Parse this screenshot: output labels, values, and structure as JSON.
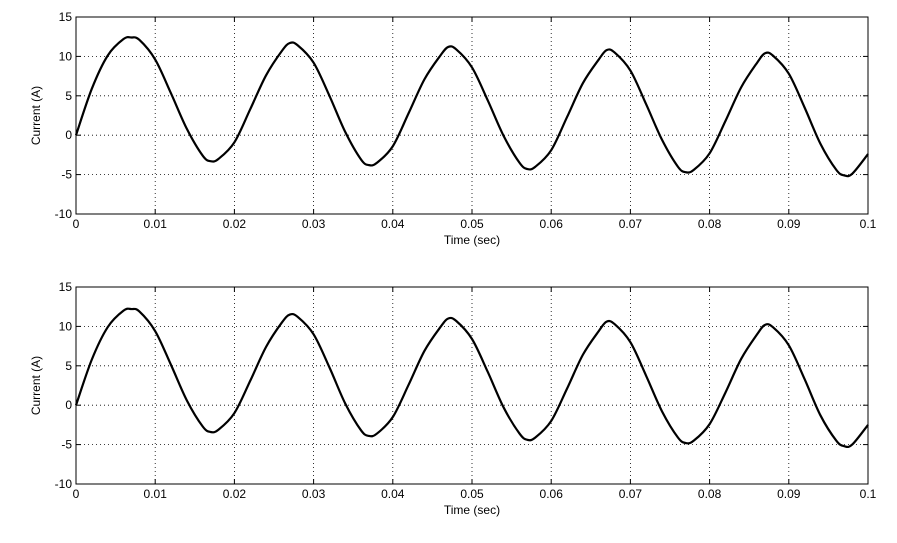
{
  "chart_data": [
    {
      "type": "line",
      "title": "",
      "xlabel": "Time (sec)",
      "ylabel": "Current (A)",
      "xlim": [
        0,
        0.1
      ],
      "ylim": [
        -10,
        15
      ],
      "grid": true,
      "x_ticks": [
        "0",
        "0.01",
        "0.02",
        "0.03",
        "0.04",
        "0.05",
        "0.06",
        "0.07",
        "0.08",
        "0.09",
        "0.1"
      ],
      "y_ticks": [
        "-10",
        "-5",
        "0",
        "5",
        "10",
        "15"
      ],
      "line_color": "#000000",
      "series": [
        {
          "x": [
            0,
            0.002,
            0.004,
            0.006,
            0.007,
            0.008,
            0.01,
            0.012,
            0.014,
            0.016,
            0.017,
            0.018,
            0.02,
            0.022,
            0.024,
            0.026,
            0.027,
            0.028,
            0.03,
            0.032,
            0.034,
            0.036,
            0.037,
            0.038,
            0.04,
            0.042,
            0.044,
            0.046,
            0.047,
            0.048,
            0.05,
            0.052,
            0.054,
            0.056,
            0.057,
            0.058,
            0.06,
            0.062,
            0.064,
            0.066,
            0.067,
            0.068,
            0.07,
            0.072,
            0.074,
            0.076,
            0.077,
            0.078,
            0.08,
            0.082,
            0.084,
            0.086,
            0.087,
            0.088,
            0.09,
            0.092,
            0.094,
            0.096,
            0.097,
            0.098,
            0.1
          ],
          "y": [
            0,
            5.9,
            10.1,
            12.2,
            12.4,
            12.1,
            9.6,
            5.3,
            0.8,
            -2.6,
            -3.3,
            -3.0,
            -0.9,
            3.3,
            7.6,
            10.7,
            11.7,
            11.4,
            9.2,
            5.0,
            0.4,
            -3.1,
            -3.8,
            -3.5,
            -1.4,
            2.8,
            7.1,
            10.1,
            11.2,
            10.9,
            8.6,
            4.4,
            -0.1,
            -3.5,
            -4.3,
            -4.0,
            -1.9,
            2.3,
            6.6,
            9.6,
            10.8,
            10.5,
            8.2,
            3.9,
            -0.6,
            -4.0,
            -4.7,
            -4.4,
            -2.3,
            1.8,
            6.1,
            9.2,
            10.4,
            10.1,
            7.8,
            3.5,
            -1.1,
            -4.4,
            -5.1,
            -4.9,
            -2.4
          ]
        }
      ]
    },
    {
      "type": "line",
      "title": "",
      "xlabel": "Time (sec)",
      "ylabel": "Current (A)",
      "xlim": [
        0,
        0.1
      ],
      "ylim": [
        -10,
        15
      ],
      "grid": true,
      "x_ticks": [
        "0",
        "0.01",
        "0.02",
        "0.03",
        "0.04",
        "0.05",
        "0.06",
        "0.07",
        "0.08",
        "0.09",
        "0.1"
      ],
      "y_ticks": [
        "-10",
        "-5",
        "0",
        "5",
        "10",
        "15"
      ],
      "line_color": "#000000",
      "series": [
        {
          "x": [
            0,
            0.002,
            0.004,
            0.006,
            0.007,
            0.008,
            0.01,
            0.012,
            0.014,
            0.016,
            0.017,
            0.018,
            0.02,
            0.022,
            0.024,
            0.026,
            0.027,
            0.028,
            0.03,
            0.032,
            0.034,
            0.036,
            0.037,
            0.038,
            0.04,
            0.042,
            0.044,
            0.046,
            0.047,
            0.048,
            0.05,
            0.052,
            0.054,
            0.056,
            0.057,
            0.058,
            0.06,
            0.062,
            0.064,
            0.066,
            0.067,
            0.068,
            0.07,
            0.072,
            0.074,
            0.076,
            0.077,
            0.078,
            0.08,
            0.082,
            0.084,
            0.086,
            0.087,
            0.088,
            0.09,
            0.092,
            0.094,
            0.096,
            0.097,
            0.098,
            0.1
          ],
          "y": [
            0,
            5.8,
            9.9,
            12.0,
            12.2,
            11.9,
            9.4,
            5.1,
            0.6,
            -2.7,
            -3.4,
            -3.1,
            -1.0,
            3.1,
            7.4,
            10.5,
            11.5,
            11.2,
            9.0,
            4.8,
            0.2,
            -3.2,
            -3.9,
            -3.6,
            -1.5,
            2.6,
            6.9,
            9.9,
            11.0,
            10.7,
            8.4,
            4.2,
            -0.3,
            -3.6,
            -4.4,
            -4.1,
            -2.0,
            2.1,
            6.4,
            9.4,
            10.6,
            10.3,
            8.0,
            3.7,
            -0.8,
            -4.1,
            -4.8,
            -4.5,
            -2.4,
            1.6,
            5.9,
            9.0,
            10.2,
            9.9,
            7.6,
            3.3,
            -1.3,
            -4.5,
            -5.2,
            -5.0,
            -2.5
          ]
        }
      ]
    }
  ]
}
